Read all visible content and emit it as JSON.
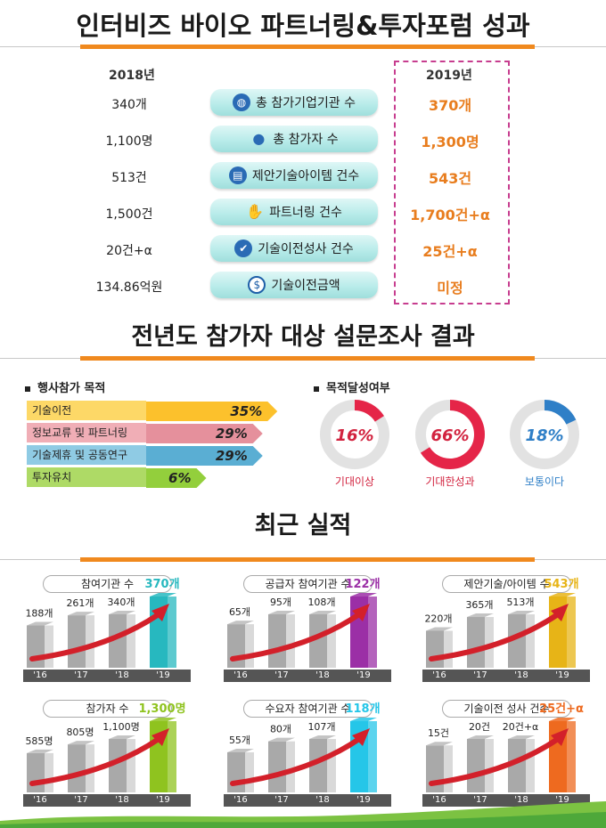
{
  "section1": {
    "title": "인터비즈 바이오 파트너링&투자포럼 성과",
    "year_left": "2018년",
    "year_right": "2019년",
    "rows": [
      {
        "v2018": "340개",
        "label": "총 참가기업기관 수",
        "v2019": "370개",
        "icon": "globe-icon"
      },
      {
        "v2018": "1,100명",
        "label": "총 참가자 수",
        "v2019": "1,300명",
        "icon": "people-icon"
      },
      {
        "v2018": "513건",
        "label": "제안기술아이템 건수",
        "v2019": "543건",
        "icon": "clipboard-chart-icon"
      },
      {
        "v2018": "1,500건",
        "label": "파트너링 건수",
        "v2019": "1,700건+α",
        "icon": "handshake-icon"
      },
      {
        "v2018": "20건+α",
        "label": "기술이전성사 건수",
        "v2019": "25건+α",
        "icon": "checklist-icon"
      },
      {
        "v2018": "134.86억원",
        "label": "기술이전금액",
        "v2019": "미정",
        "icon": "dollar-icon"
      }
    ]
  },
  "section2": {
    "title": "전년도 참가자 대상 설문조사 결과",
    "purpose_title": "행사참가 목적",
    "achievement_title": "목적달성여부",
    "purposes": [
      {
        "label": "기술이전",
        "pct": "35%",
        "value": 35,
        "color": "#fcc12c",
        "lblcolor": "#fdd867"
      },
      {
        "label": "정보교류 및 파트너링",
        "pct": "29%",
        "value": 29,
        "color": "#e5909c",
        "lblcolor": "#f0aeb6"
      },
      {
        "label": "기술제휴 및 공동연구",
        "pct": "29%",
        "value": 29,
        "color": "#5aaed3",
        "lblcolor": "#8fcbe4"
      },
      {
        "label": "투자유치",
        "pct": "6%",
        "value": 6,
        "color": "#93cf3c",
        "lblcolor": "#aeda66"
      }
    ],
    "donuts": [
      {
        "pct": "16%",
        "value": 16,
        "label": "기대이상",
        "color": "#e52548",
        "labelcolor": "#d2233f"
      },
      {
        "pct": "66%",
        "value": 66,
        "label": "기대한성과",
        "color": "#e52548",
        "labelcolor": "#d2233f"
      },
      {
        "pct": "18%",
        "value": 18,
        "label": "보통이다",
        "color": "#2f7fc7",
        "labelcolor": "#2f7fc7"
      }
    ]
  },
  "section3": {
    "title": "최근 실적"
  },
  "chart_data": [
    {
      "type": "bar",
      "title": "참여기관 수",
      "categories": [
        "'16",
        "'17",
        "'18",
        "'19"
      ],
      "values": [
        188,
        261,
        340,
        370
      ],
      "labels": [
        "188개",
        "261개",
        "340개",
        "370개"
      ],
      "accent": "#27b8bf"
    },
    {
      "type": "bar",
      "title": "공급자 참여기관 수",
      "categories": [
        "'16",
        "'17",
        "'18",
        "'19"
      ],
      "values": [
        65,
        95,
        108,
        122
      ],
      "labels": [
        "65개",
        "95개",
        "108개",
        "122개"
      ],
      "accent": "#9b2fa6"
    },
    {
      "type": "bar",
      "title": "제안기술/아이템 수",
      "categories": [
        "'16",
        "'17",
        "'18",
        "'19"
      ],
      "values": [
        220,
        365,
        513,
        543
      ],
      "labels": [
        "220개",
        "365개",
        "513개",
        "543개"
      ],
      "accent": "#e7b417"
    },
    {
      "type": "bar",
      "title": "참가자 수",
      "categories": [
        "'16",
        "'17",
        "'18",
        "'19"
      ],
      "values": [
        585,
        805,
        1100,
        1300
      ],
      "labels": [
        "585명",
        "805명",
        "1,100명",
        "1,300명"
      ],
      "accent": "#8fc31f"
    },
    {
      "type": "bar",
      "title": "수요자 참여기관 수",
      "categories": [
        "'16",
        "'17",
        "'18",
        "'19"
      ],
      "values": [
        55,
        80,
        107,
        118
      ],
      "labels": [
        "55개",
        "80개",
        "107개",
        "118개"
      ],
      "accent": "#25c6e8"
    },
    {
      "type": "bar",
      "title": "기술이전 성사 건수",
      "categories": [
        "'16",
        "'17",
        "'18",
        "'19"
      ],
      "values": [
        15,
        20,
        20,
        25
      ],
      "labels": [
        "15건",
        "20건",
        "20건+α",
        "25건+α"
      ],
      "accent": "#ee6a1f"
    }
  ]
}
